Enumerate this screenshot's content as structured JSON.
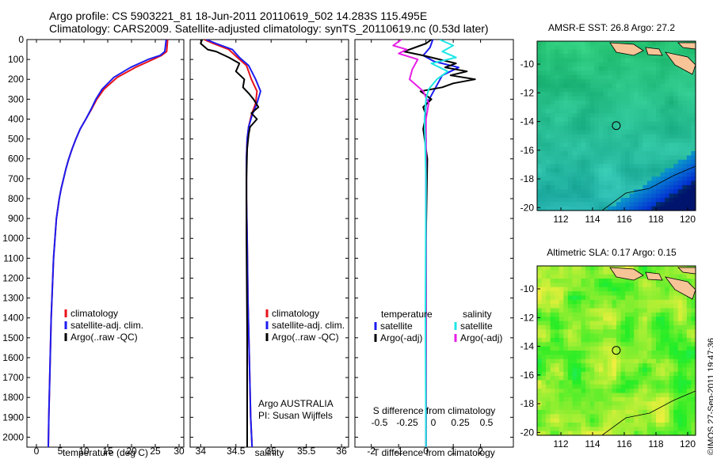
{
  "title_line1": "Argo profile: CS 5903221_81 18-Jun-2011 20110619_502 14.283S 115.495E",
  "title_line2": "Climatology: CARS2009. Satellite-adjusted climatology: synTS_20110619.nc (0.53d later)",
  "timestamp": "©IMOS 27-Sep-2011 19:47:36",
  "colors": {
    "climatology": "#e8121a",
    "satellite": "#1c1cf0",
    "argo": "#000000",
    "cyan": "#1ee6e6",
    "magenta": "#e61ee6"
  },
  "chart_data": [
    {
      "type": "line",
      "xlabel": "temperature (deg C)",
      "xticks": [
        "0",
        "5",
        "10",
        "15",
        "20",
        "25",
        "30"
      ],
      "xlim": [
        -2,
        31
      ],
      "ylim": [
        0,
        2050
      ],
      "yticks": [
        "0",
        "100",
        "200",
        "300",
        "400",
        "500",
        "600",
        "700",
        "800",
        "900",
        "1000",
        "1100",
        "1200",
        "1300",
        "1400",
        "1500",
        "1600",
        "1700",
        "1800",
        "1900",
        "2000"
      ],
      "legend": [
        "climatology",
        "satellite-adj. clim.",
        "Argo(..raw -QC)"
      ],
      "series": [
        {
          "color": "climatology",
          "x": [
            27.6,
            27.4,
            26.3,
            24.5,
            20.8,
            17.0,
            14.2,
            12.7,
            11.6,
            10.4,
            9.2,
            8.3,
            7.5,
            6.8,
            6.2,
            5.7,
            5.2,
            4.8,
            4.2,
            3.6,
            3.1,
            2.9,
            2.6,
            2.5
          ],
          "y": [
            0,
            60,
            80,
            100,
            140,
            190,
            250,
            300,
            350,
            400,
            450,
            500,
            550,
            600,
            650,
            700,
            750,
            800,
            900,
            1100,
            1400,
            1600,
            1900,
            2050
          ]
        },
        {
          "color": "satellite",
          "x": [
            27.3,
            27.0,
            26.0,
            23.5,
            19.8,
            16.3,
            13.8,
            12.5,
            11.5,
            10.4,
            9.2,
            8.3,
            7.5,
            6.8,
            6.2,
            5.7,
            5.2,
            4.8,
            4.2,
            3.6,
            3.1,
            2.9,
            2.6,
            2.5
          ],
          "y": [
            0,
            60,
            80,
            100,
            140,
            190,
            250,
            300,
            350,
            400,
            450,
            500,
            550,
            600,
            650,
            700,
            750,
            800,
            900,
            1100,
            1400,
            1600,
            1900,
            2050
          ]
        }
      ]
    },
    {
      "type": "line",
      "xlabel": "salinity",
      "xticks": [
        "34",
        "34.5",
        "35",
        "35.5",
        "36"
      ],
      "xlim": [
        33.85,
        36.1
      ],
      "ylim": [
        0,
        2050
      ],
      "legend": [
        "climatology",
        "satellite-adj. clim.",
        "Argo(..raw -QC)"
      ],
      "note_line1": "Argo AUSTRALIA",
      "note_line2": "PI: Susan Wijffels",
      "series": [
        {
          "color": "climatology",
          "x": [
            34.05,
            34.18,
            34.4,
            34.52,
            34.65,
            34.72,
            34.8,
            34.78,
            34.72,
            34.68,
            34.66,
            34.65,
            34.65,
            34.66,
            34.67,
            34.69,
            34.71,
            34.73
          ],
          "y": [
            0,
            20,
            50,
            90,
            130,
            200,
            260,
            320,
            380,
            440,
            500,
            600,
            800,
            1000,
            1300,
            1600,
            1900,
            2050
          ]
        },
        {
          "color": "satellite",
          "x": [
            34.08,
            34.22,
            34.45,
            34.55,
            34.68,
            34.78,
            34.85,
            34.8,
            34.73,
            34.68,
            34.66,
            34.65,
            34.65,
            34.66,
            34.67,
            34.69,
            34.71,
            34.73
          ],
          "y": [
            0,
            20,
            50,
            90,
            130,
            200,
            260,
            320,
            380,
            440,
            500,
            600,
            800,
            1000,
            1300,
            1600,
            1900,
            2050
          ]
        },
        {
          "color": "argo",
          "x": [
            34.02,
            34.0,
            34.1,
            34.22,
            34.4,
            34.55,
            34.5,
            34.62,
            34.6,
            34.68,
            34.75,
            34.82,
            34.72,
            34.8,
            34.7,
            34.68,
            34.66,
            34.65,
            34.65,
            34.66,
            34.66
          ],
          "y": [
            0,
            20,
            50,
            60,
            90,
            120,
            160,
            200,
            240,
            270,
            300,
            340,
            370,
            400,
            440,
            480,
            550,
            700,
            1000,
            1500,
            2050
          ]
        }
      ]
    },
    {
      "type": "line",
      "xlabel": "T difference from climatology",
      "xlabel_top": "S difference from climatology",
      "xticks": [
        "-2",
        "-1",
        "0",
        "1",
        "2"
      ],
      "xticks_top": [
        "-0.5",
        "-0.25",
        "0",
        "0.25",
        "0.5"
      ],
      "xlim": [
        -2.6,
        3.2
      ],
      "ylim": [
        0,
        2050
      ],
      "legend_left_title": "temperature",
      "legend_left": [
        "satellite",
        "Argo(-adj)"
      ],
      "legend_right_title": "salinity",
      "legend_right": [
        "satellite",
        "Argo(-adj)"
      ],
      "series": [
        {
          "color": "satellite",
          "x": [
            0.25,
            0.15,
            -0.1,
            0.3,
            1.2,
            0.6,
            0.4,
            0.2,
            0.0,
            -0.05,
            0.0,
            0.0,
            0.0,
            0.0,
            0.0
          ],
          "y": [
            0,
            40,
            80,
            110,
            140,
            180,
            230,
            280,
            330,
            400,
            500,
            700,
            1000,
            1500,
            2050
          ]
        },
        {
          "color": "argo",
          "x": [
            0.2,
            0.0,
            -0.4,
            -0.8,
            -0.1,
            0.5,
            1.1,
            0.7,
            1.5,
            0.9,
            1.8,
            1.0,
            0.6,
            -0.2,
            0.2,
            -0.1,
            0.0,
            -0.1,
            0.05,
            0.0,
            0.0,
            0.0
          ],
          "y": [
            0,
            20,
            40,
            60,
            80,
            100,
            120,
            140,
            160,
            180,
            200,
            220,
            240,
            260,
            300,
            340,
            380,
            450,
            600,
            1000,
            1500,
            2050
          ]
        },
        {
          "color": "magenta",
          "x": [
            -0.9,
            -1.2,
            -0.7,
            -1.0,
            -0.3,
            -0.5,
            -0.6,
            -0.1,
            0.1,
            0.0,
            0.0,
            0.0
          ],
          "y": [
            0,
            30,
            50,
            70,
            100,
            150,
            200,
            260,
            320,
            400,
            600,
            2050
          ]
        },
        {
          "color": "cyan",
          "x": [
            0.5,
            1.0,
            0.6,
            1.1,
            0.2,
            0.8,
            0.4,
            0.1,
            0.0,
            -0.05,
            0.0,
            -0.02,
            0.0
          ],
          "y": [
            0,
            30,
            60,
            90,
            120,
            160,
            200,
            250,
            300,
            400,
            700,
            1400,
            2050
          ]
        }
      ]
    },
    {
      "type": "heatmap",
      "title": "AMSR-E SST: 26.8 Argo: 27.2",
      "xticks": [
        "112",
        "114",
        "116",
        "118",
        "120"
      ],
      "yticks": [
        "-10",
        "-12",
        "-14",
        "-16",
        "-18",
        "-20"
      ],
      "xlim": [
        110.5,
        120.5
      ],
      "ylim": [
        -20.2,
        -8.4
      ],
      "marker": {
        "lon": 115.495,
        "lat": -14.283
      }
    },
    {
      "type": "heatmap",
      "title": "Altimetric SLA: 0.17 Argo: 0.15",
      "xticks": [
        "112",
        "114",
        "116",
        "118",
        "120"
      ],
      "yticks": [
        "-10",
        "-12",
        "-14",
        "-16",
        "-18",
        "-20"
      ],
      "xlim": [
        110.5,
        120.5
      ],
      "ylim": [
        -20.2,
        -8.4
      ],
      "marker": {
        "lon": 115.495,
        "lat": -14.283
      }
    }
  ]
}
